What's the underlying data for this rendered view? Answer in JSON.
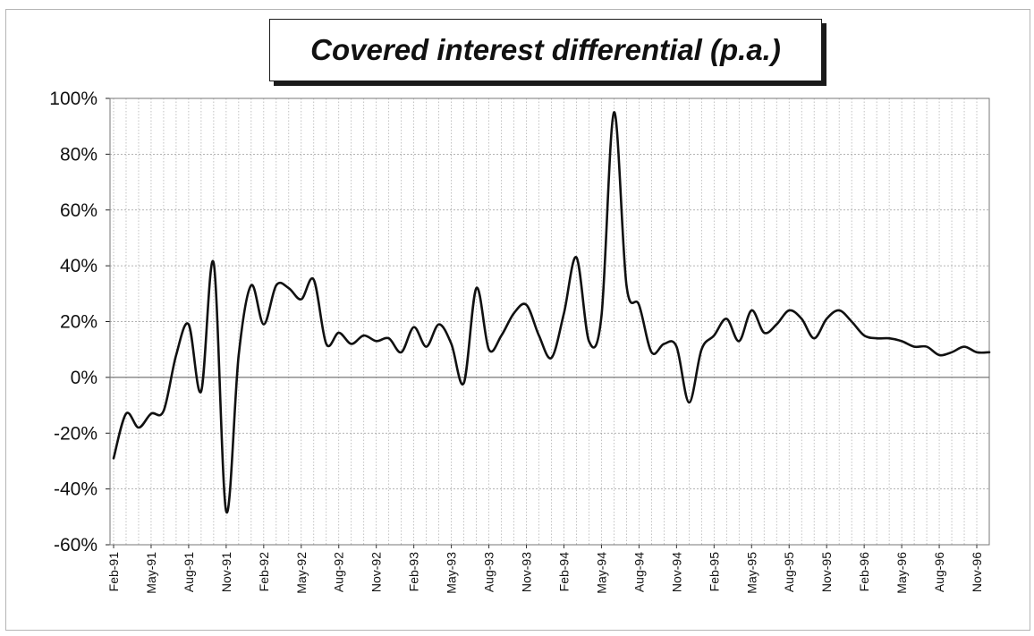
{
  "chart_data": {
    "type": "line",
    "title": "Covered interest differential (p.a.)",
    "xlabel": "",
    "ylabel": "",
    "ylim": [
      -60,
      100
    ],
    "y_tick_labels": [
      "100%",
      "80%",
      "60%",
      "40%",
      "20%",
      "0%",
      "-20%",
      "-40%",
      "-60%"
    ],
    "x_tick_labels": [
      "Feb-91",
      "May-91",
      "Aug-91",
      "Nov-91",
      "Feb-92",
      "May-92",
      "Aug-92",
      "Nov-92",
      "Feb-93",
      "May-93",
      "Aug-93",
      "Nov-93",
      "Feb-94",
      "May-94",
      "Aug-94",
      "Nov-94",
      "Feb-95",
      "May-95",
      "Aug-95",
      "Nov-95",
      "Feb-96",
      "May-96",
      "Aug-96",
      "Nov-96"
    ],
    "grid": true,
    "legend": "none",
    "series": [
      {
        "values": [
          -29,
          -13,
          -18,
          -13,
          -12,
          8,
          19,
          -5,
          41,
          -48,
          8,
          33,
          19,
          33,
          32,
          28,
          35,
          12,
          16,
          12,
          15,
          13,
          14,
          9,
          18,
          11,
          19,
          12,
          -2,
          32,
          10,
          15,
          23,
          26,
          15,
          7,
          23,
          43,
          13,
          22,
          95,
          33,
          26,
          9,
          12,
          11,
          -9,
          10,
          15,
          21,
          13,
          24,
          16,
          19,
          24,
          21,
          14,
          21,
          24,
          20,
          15,
          14,
          14,
          13,
          11,
          11,
          8,
          9,
          11,
          9,
          9
        ]
      }
    ]
  }
}
